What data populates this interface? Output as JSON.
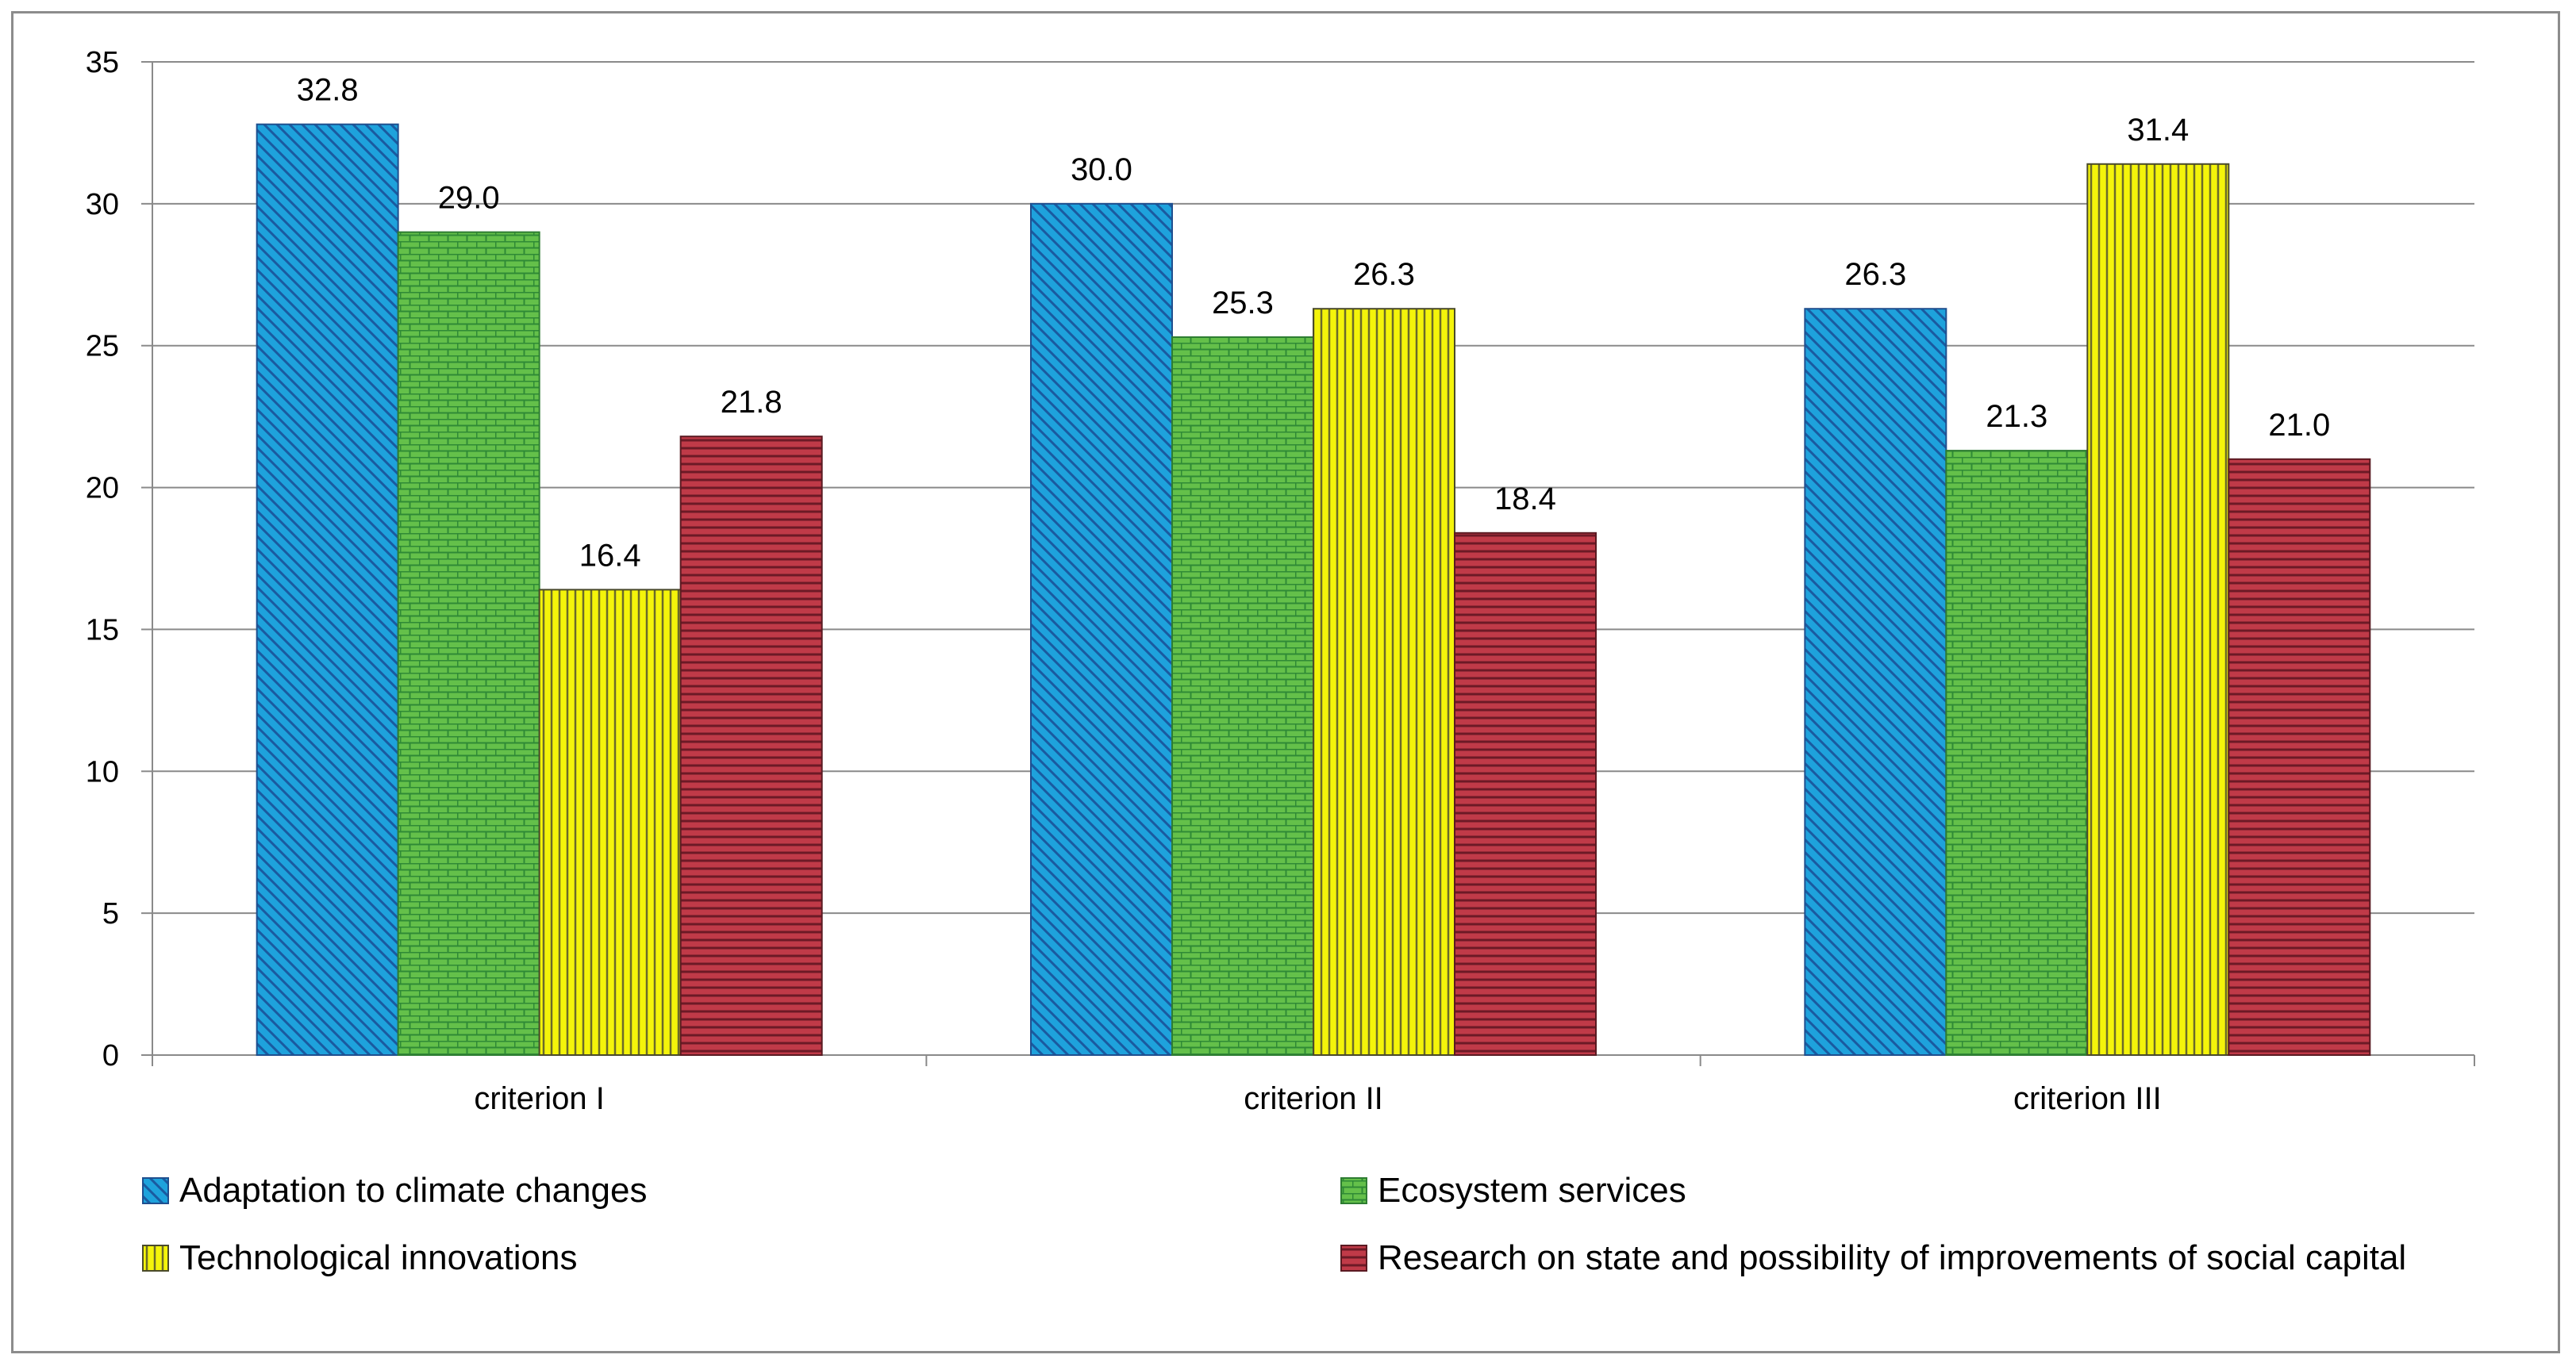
{
  "chart_data": {
    "type": "bar",
    "title": "",
    "xlabel": "",
    "ylabel": "",
    "ylim": [
      0,
      35
    ],
    "ytick_step": 5,
    "grid": true,
    "legend_position": "bottom",
    "categories": [
      "criterion I",
      "criterion II",
      "criterion III"
    ],
    "series": [
      {
        "name": "Adaptation to climate changes",
        "values": [
          32.8,
          30.0,
          26.3
        ],
        "labels": [
          "32.8",
          "30.0",
          "26.3"
        ],
        "color": "#1ea2dc",
        "stroke": "#1f4f8f",
        "pattern": "diagonal-hatch"
      },
      {
        "name": "Ecosystem services",
        "values": [
          29.0,
          25.3,
          21.3
        ],
        "labels": [
          "29.0",
          "25.3",
          "21.3"
        ],
        "color": "#64c04a",
        "stroke": "#2e7d32",
        "pattern": "brick"
      },
      {
        "name": "Technological innovations",
        "values": [
          16.4,
          26.3,
          31.4
        ],
        "labels": [
          "16.4",
          "26.3",
          "31.4"
        ],
        "color": "#f4f40a",
        "stroke": "#4a4a2a",
        "pattern": "vertical-lines"
      },
      {
        "name": "Research on state and possibility of improvements of social capital",
        "values": [
          21.8,
          18.4,
          21.0
        ],
        "labels": [
          "21.8",
          "18.4",
          "21.0"
        ],
        "color": "#bf3440",
        "stroke": "#5a1a22",
        "pattern": "horizontal-lines"
      }
    ]
  }
}
